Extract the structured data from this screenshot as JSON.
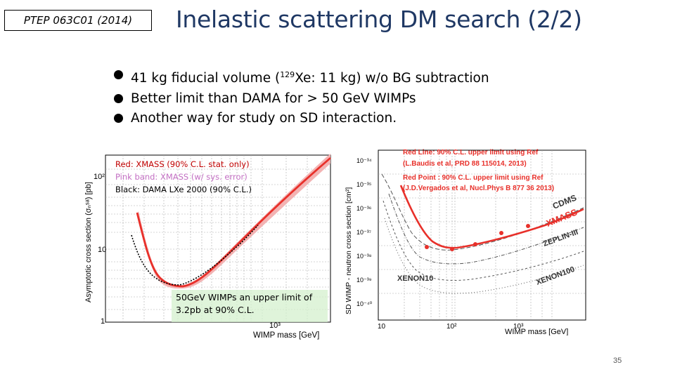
{
  "slide": {
    "reference_tag": "PTEP 063C01 (2014)",
    "title": "Inelastic scattering DM search (2/2)",
    "bullets": [
      {
        "pre": "41 kg fiducial volume (",
        "sup": "129",
        "post": "Xe: 11 kg) w/o BG subtraction"
      },
      {
        "pre": "Better limit than DAMA for > 50 GeV WIMPs",
        "sup": "",
        "post": ""
      },
      {
        "pre": "Another way for study on SD interaction.",
        "sup": "",
        "post": ""
      }
    ],
    "page_number": "35"
  },
  "left_plot": {
    "legend": {
      "red": "Red: XMASS (90% C.L. stat. only)",
      "pink": "Pink band: XMASS (w/ sys. error)",
      "black": "Black: DAMA LXe 2000 (90% C.L.)"
    },
    "annotation": {
      "line1": "50GeV WIMPs an upper limit of",
      "line2": "3.2pb at 90% C.L."
    },
    "xlabel": "WIMP mass [GeV]",
    "ylabel": "Asymptotic cross section (σₙˢᵃ) [pb]",
    "yticks": [
      "10²",
      "10",
      "1"
    ],
    "xtick": "10³",
    "colors": {
      "xmass": "#e8302a",
      "band": "#f0a0a0",
      "dama": "#000000"
    }
  },
  "right_plot": {
    "note_line1": "Red  Line: 90% C.L. upper limit using Ref",
    "note_line2": "(L.Baudis et al, PRD 88 115014, 2013)",
    "note_line3": "Red  Point : 90% C.L. upper limit using Ref",
    "note_line4": "(J.D.Vergados et al, Nucl.Phys B 877 36 2013)",
    "labels": {
      "cdms": "CDMS",
      "xmass": "XMASS",
      "zeplin": "ZEPLIN-III",
      "xenon100": "XENON100",
      "xenon10": "XENON10"
    },
    "xlabel": "WIMP mass [GeV]",
    "ylabel": "SD WIMP - neutron cross section [cm²]",
    "yticks": [
      "10⁻³⁴",
      "10⁻³⁵",
      "10⁻³⁶",
      "10⁻³⁷",
      "10⁻³⁸",
      "10⁻³⁹",
      "10⁻⁴⁰"
    ],
    "xticks": [
      "10",
      "10²",
      "10³"
    ],
    "colors": {
      "xmass": "#e8302a",
      "others": "#444444",
      "note": "#e8302a"
    }
  }
}
